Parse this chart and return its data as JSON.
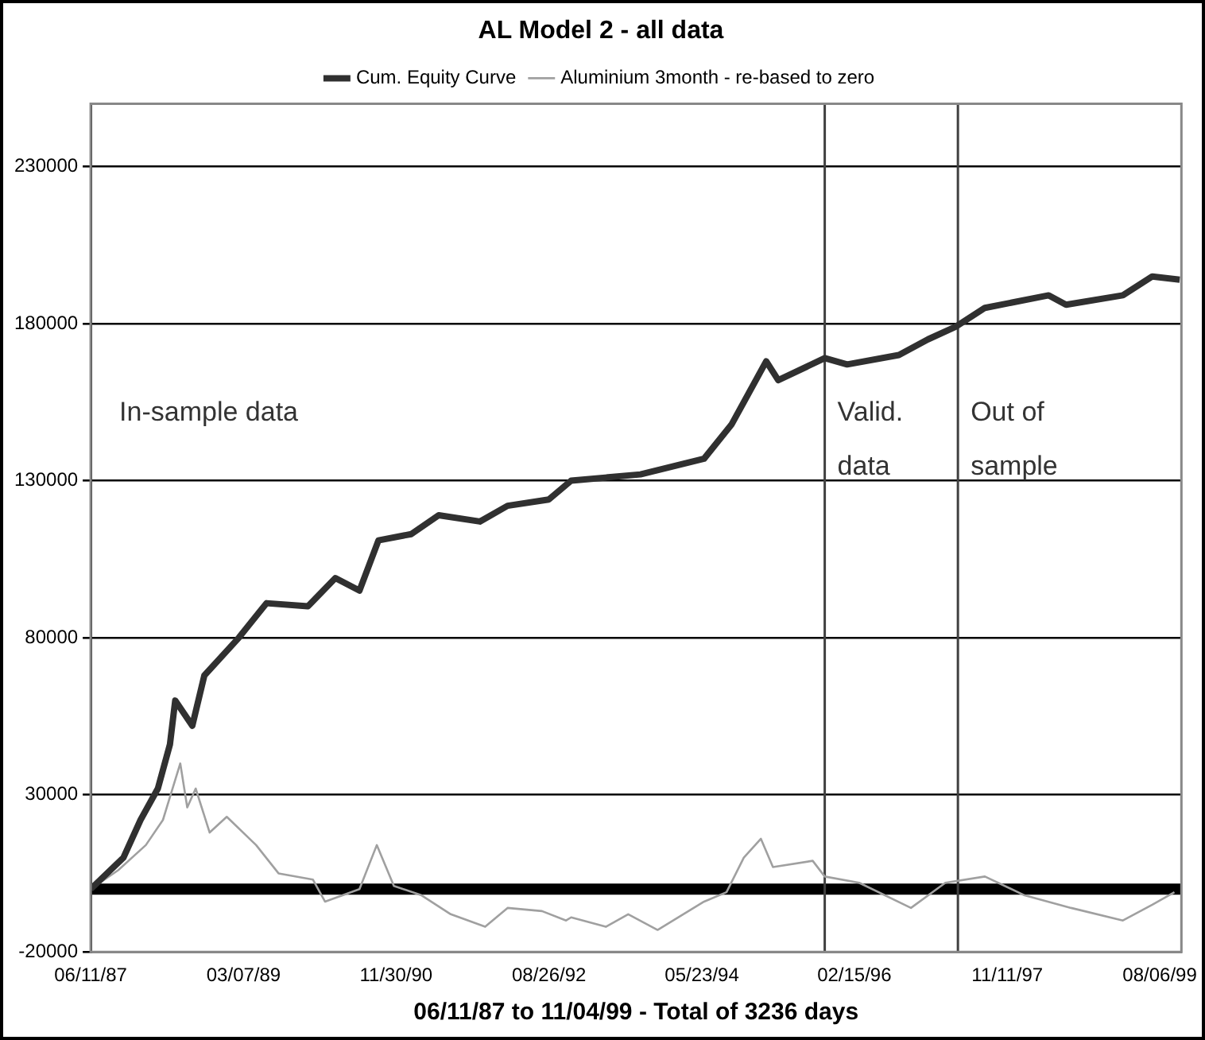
{
  "chart_data": {
    "type": "line",
    "title": "AL Model 2 - all data",
    "xlabel": "06/11/87 to 11/04/99 - Total of 3236 days",
    "xlim": [
      "1987-06-11",
      "1999-11-04"
    ],
    "xticks": [
      {
        "value": "1987-06-11",
        "label": "06/11/87"
      },
      {
        "value": "1989-03-07",
        "label": "03/07/89"
      },
      {
        "value": "1990-11-30",
        "label": "11/30/90"
      },
      {
        "value": "1992-08-26",
        "label": "08/26/92"
      },
      {
        "value": "1994-05-23",
        "label": "05/23/94"
      },
      {
        "value": "1996-02-15",
        "label": "02/15/96"
      },
      {
        "value": "1997-11-11",
        "label": "11/11/97"
      },
      {
        "value": "1999-08-06",
        "label": "08/06/99"
      }
    ],
    "ylim": [
      -20000,
      250000
    ],
    "yticks": [
      -20000,
      30000,
      80000,
      130000,
      180000,
      230000
    ],
    "grid": "y",
    "legend": "top",
    "marker": "none",
    "line_style": "solid",
    "series": [
      {
        "name": "Cum. Equity Curve",
        "color": "#303030",
        "x": [
          "1987-06-11",
          "1987-10-25",
          "1988-01-04",
          "1988-03-16",
          "1988-05-05",
          "1988-05-27",
          "1988-08-06",
          "1988-09-25",
          "1989-02-15",
          "1989-06-10",
          "1989-11-29",
          "1990-03-23",
          "1990-07-01",
          "1990-09-18",
          "1991-02-01",
          "1991-05-26",
          "1991-11-13",
          "1992-03-07",
          "1992-08-25",
          "1992-11-26",
          "1993-09-10",
          "1994-06-01",
          "1994-09-24",
          "1995-02-14",
          "1995-04-05",
          "1995-10-15",
          "1996-01-16",
          "1996-08-18",
          "1996-12-17",
          "1997-04-11",
          "1997-08-10",
          "1998-05-02",
          "1998-07-13",
          "1999-03-06",
          "1999-07-06",
          "1999-10-28"
        ],
        "values": [
          0,
          10000,
          22000,
          32000,
          46000,
          60000,
          52000,
          68000,
          80000,
          91000,
          90000,
          99000,
          95000,
          111000,
          113000,
          119000,
          117000,
          122000,
          124000,
          130000,
          132000,
          137000,
          148000,
          168000,
          162000,
          169000,
          167000,
          170000,
          175000,
          179000,
          185000,
          189000,
          186000,
          189000,
          195000,
          194000
        ]
      },
      {
        "name": "Aluminium 3month - re-based to zero",
        "color": "#a0a0a0",
        "x": [
          "1987-06-11",
          "1987-10-03",
          "1988-01-26",
          "1988-04-06",
          "1988-06-17",
          "1988-07-16",
          "1988-08-20",
          "1988-10-17",
          "1988-12-27",
          "1989-04-28",
          "1989-07-30",
          "1989-12-20",
          "1990-02-08",
          "1990-07-01",
          "1990-09-11",
          "1990-11-21",
          "1991-03-16",
          "1991-07-15",
          "1991-12-05",
          "1992-03-07",
          "1992-07-28",
          "1992-11-05",
          "1992-11-26",
          "1993-04-19",
          "1993-07-21",
          "1993-11-20",
          "1994-06-01",
          "1994-09-02",
          "1994-11-13",
          "1995-01-23",
          "1995-03-14",
          "1995-08-26",
          "1995-10-15",
          "1996-03-06",
          "1996-10-07",
          "1997-02-27",
          "1997-08-10",
          "1998-01-22",
          "1998-08-03",
          "1999-03-06",
          "1999-07-06",
          "1999-10-06"
        ],
        "values": [
          0,
          6000,
          14000,
          22000,
          40000,
          26000,
          32000,
          18000,
          23000,
          14000,
          5000,
          3000,
          -4000,
          0,
          14000,
          1000,
          -2000,
          -8000,
          -12000,
          -6000,
          -7000,
          -10000,
          -9000,
          -12000,
          -8000,
          -13000,
          -4000,
          -1000,
          10000,
          16000,
          7000,
          9000,
          4000,
          2000,
          -6000,
          2000,
          4000,
          -2000,
          -6000,
          -10000,
          -5000,
          -1000
        ]
      }
    ],
    "ref_lines": [
      {
        "axis": "y",
        "value": 0,
        "color": "#000000"
      },
      {
        "axis": "x",
        "value": "1995-10-15",
        "color": "#404040"
      },
      {
        "axis": "x",
        "value": "1997-04-20",
        "color": "#404040"
      }
    ],
    "annotations": [
      "In-sample data",
      "Valid.\ndata",
      "Out of\nsample"
    ]
  }
}
